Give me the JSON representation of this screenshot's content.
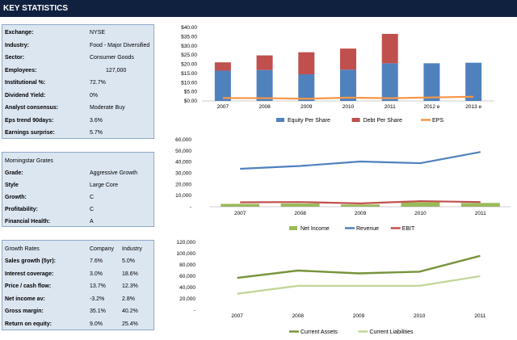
{
  "header": {
    "title": "KEY STATISTICS"
  },
  "key_stats": [
    {
      "label": "Exchange:",
      "value": "NYSE"
    },
    {
      "label": "Industry:",
      "value": "Food - Major Diversified"
    },
    {
      "label": "Sector:",
      "value": "Consumer Goods"
    },
    {
      "label": "Employees:",
      "value": "127,000"
    },
    {
      "label": "Institutional %:",
      "value": "72.7%"
    },
    {
      "label": "Dividend Yield:",
      "value": "0%"
    },
    {
      "label": "Analyst consensus:",
      "value": "Moderate Buy"
    },
    {
      "label": "Eps trend 90days:",
      "value": "3.6%"
    },
    {
      "label": "Earnings surprise:",
      "value": "5.7%"
    }
  ],
  "morningstar": {
    "title": "Morningstar Grates",
    "rows": [
      {
        "label": "Grade:",
        "value": "Aggressive Growth"
      },
      {
        "label": "Style",
        "value": "Large Core"
      },
      {
        "label": "Growth:",
        "value": "C"
      },
      {
        "label": "Profitability:",
        "value": "C"
      },
      {
        "label": "Financial Health:",
        "value": "A"
      }
    ]
  },
  "growth_rates": {
    "title": "Growth Rates",
    "col1": "Company",
    "col2": "Industry",
    "rows": [
      {
        "label": "Sales growth (5yr):",
        "company": "7.6%",
        "industry": "5.0%"
      },
      {
        "label": "Interest coverage:",
        "company": "3.0%",
        "industry": "18.6%"
      },
      {
        "label": "Price / cash flow:",
        "company": "13.7%",
        "industry": "12.3%"
      },
      {
        "label": "Net income av:",
        "company": "-3.2%",
        "industry": "2.8%"
      },
      {
        "label": "Gross margin:",
        "company": "35.1%",
        "industry": "40.2%"
      },
      {
        "label": "Return on equity:",
        "company": "9.0%",
        "industry": "25.4%"
      }
    ]
  },
  "chart_data": [
    {
      "type": "bar",
      "stacked": true,
      "categories": [
        "2007",
        "2008",
        "2009",
        "2010",
        "2011",
        "2012 e",
        "2013 e"
      ],
      "y_ticks": [
        "$0.00",
        "$5.00",
        "$10.00",
        "$15.00",
        "$20.00",
        "$25.00",
        "$30.00",
        "$35.00",
        "$40.00"
      ],
      "ylim": [
        0,
        40
      ],
      "series": [
        {
          "name": "Equity Per Share",
          "type": "bar",
          "color": "#4f81bd",
          "values": [
            16.5,
            16.8,
            14.5,
            17.0,
            20.5,
            20.5,
            20.8
          ]
        },
        {
          "name": "Debt Per Share",
          "type": "bar",
          "color": "#c0504d",
          "values": [
            4.5,
            8.0,
            12.0,
            11.5,
            16.0,
            0,
            0
          ]
        },
        {
          "name": "EPS",
          "type": "line",
          "color": "#f79646",
          "values": [
            1.6,
            1.5,
            1.2,
            1.8,
            1.5,
            1.9,
            2.3
          ]
        }
      ],
      "legend": "bottom"
    },
    {
      "type": "line",
      "categories": [
        "2007",
        "2008",
        "2009",
        "2010",
        "2011"
      ],
      "y_ticks": [
        "-",
        "10,000",
        "20,000",
        "30,000",
        "40,000",
        "50,000",
        "60,000"
      ],
      "ylim": [
        0,
        60000
      ],
      "series": [
        {
          "name": "Net Income",
          "type": "bar",
          "color": "#9bbb59",
          "values": [
            2600,
            2900,
            2000,
            4100,
            3400
          ]
        },
        {
          "name": "Revenue",
          "type": "line",
          "color": "#4f81bd",
          "values": [
            34000,
            36500,
            40500,
            39000,
            49000
          ]
        },
        {
          "name": "EBIT",
          "type": "line",
          "color": "#c0504d",
          "values": [
            4000,
            4200,
            3000,
            5000,
            4200
          ]
        }
      ],
      "legend": "bottom"
    },
    {
      "type": "line",
      "categories": [
        "2007",
        "2008",
        "2009",
        "2010",
        "2011"
      ],
      "y_ticks": [
        "-",
        "20,000",
        "40,000",
        "60,000",
        "80,000",
        "100,000",
        "120,000"
      ],
      "ylim": [
        0,
        120000
      ],
      "series": [
        {
          "name": "Current Assets",
          "color": "#77933c",
          "values": [
            57000,
            70000,
            65000,
            68000,
            96000
          ]
        },
        {
          "name": "Current Liabilities",
          "color": "#c3d69b",
          "values": [
            29000,
            43000,
            43000,
            43000,
            60000
          ]
        }
      ],
      "legend": "bottom"
    }
  ]
}
